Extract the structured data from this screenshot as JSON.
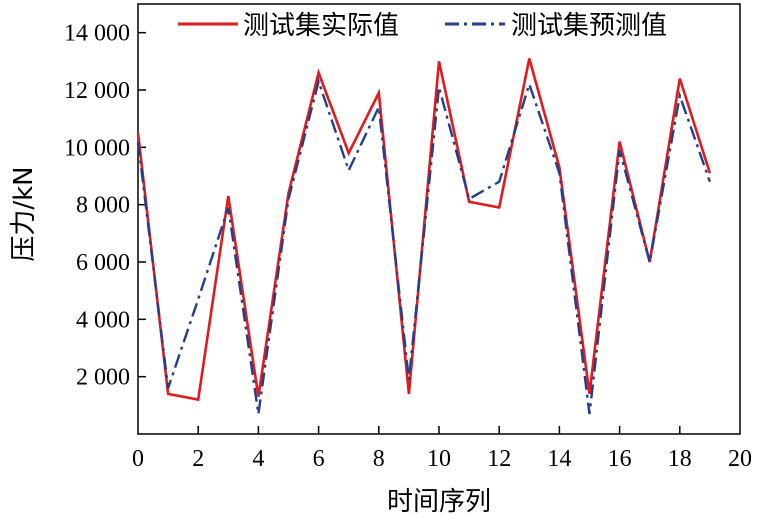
{
  "chart_data": {
    "type": "line",
    "xlabel": "时间序列",
    "ylabel": "压力/kN",
    "xlim": [
      0,
      20
    ],
    "ylim": [
      0,
      15000
    ],
    "x_ticks": [
      0,
      2,
      4,
      6,
      8,
      10,
      12,
      14,
      16,
      18,
      20
    ],
    "y_ticks": [
      2000,
      4000,
      6000,
      8000,
      10000,
      12000,
      14000
    ],
    "x_tick_labels": [
      "0",
      "2",
      "4",
      "6",
      "8",
      "10",
      "12",
      "14",
      "16",
      "18",
      "20"
    ],
    "y_tick_labels": [
      "2 000",
      "4 000",
      "6 000",
      "8 000",
      "10 000",
      "12 000",
      "14 000"
    ],
    "grid": false,
    "legend_position": "top",
    "x": [
      0,
      1,
      2,
      3,
      4,
      5,
      6,
      7,
      8,
      9,
      10,
      11,
      12,
      13,
      14,
      15,
      16,
      17,
      18,
      19
    ],
    "series": [
      {
        "name": "测试集实际值",
        "color": "#e31a1c",
        "style": "solid",
        "values": [
          10500,
          1400,
          1200,
          8300,
          1300,
          8400,
          12600,
          9800,
          11900,
          1400,
          13000,
          8100,
          7900,
          13100,
          9300,
          1400,
          10200,
          6000,
          12400,
          9100
        ]
      },
      {
        "name": "测试集预测值",
        "color": "#1f3f8f",
        "style": "dash-dot",
        "values": [
          10200,
          1600,
          4700,
          7900,
          700,
          8200,
          12300,
          9200,
          11400,
          1900,
          12100,
          8200,
          8800,
          12200,
          9100,
          700,
          9900,
          6000,
          11800,
          8800
        ]
      }
    ]
  }
}
